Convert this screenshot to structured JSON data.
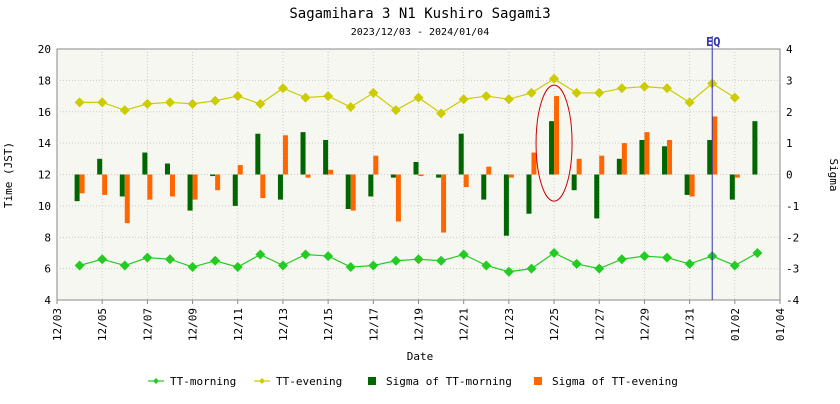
{
  "chart_data": {
    "type": "bar+line",
    "title": "Sagamihara 3 N1 Kushiro Sagami3",
    "subtitle": "2023/12/03 - 2024/01/04",
    "xlabel": "Date",
    "ylabel_left": "Time (JST)",
    "ylabel_right": "Sigma",
    "ylim_left": [
      4,
      20
    ],
    "ylim_right": [
      -4,
      4
    ],
    "yticks_left": [
      "4",
      "6",
      "8",
      "10",
      "12",
      "14",
      "16",
      "18",
      "20"
    ],
    "yticks_right": [
      "-4",
      "-3",
      "-2",
      "-1",
      "0",
      "1",
      "2",
      "3",
      "4"
    ],
    "xticks": [
      "12/03",
      "12/05",
      "12/07",
      "12/09",
      "12/11",
      "12/13",
      "12/15",
      "12/17",
      "12/19",
      "12/21",
      "12/23",
      "12/25",
      "12/27",
      "12/29",
      "12/31",
      "01/02",
      "01/04"
    ],
    "x_dates": [
      "12/04",
      "12/05",
      "12/06",
      "12/07",
      "12/08",
      "12/09",
      "12/10",
      "12/11",
      "12/12",
      "12/13",
      "12/14",
      "12/15",
      "12/16",
      "12/17",
      "12/18",
      "12/19",
      "12/20",
      "12/21",
      "12/22",
      "12/23",
      "12/24",
      "12/25",
      "12/26",
      "12/27",
      "12/28",
      "12/29",
      "12/30",
      "12/31",
      "01/01",
      "01/02",
      "01/03"
    ],
    "grid": true,
    "legend_position": "bottom",
    "series": [
      {
        "name": "TT-morning",
        "kind": "line",
        "axis": "left",
        "color": "#22cc22",
        "values": [
          6.2,
          6.6,
          6.2,
          6.7,
          6.6,
          6.1,
          6.5,
          6.1,
          6.9,
          6.2,
          6.9,
          6.8,
          6.1,
          6.2,
          6.5,
          6.6,
          6.5,
          6.9,
          6.2,
          5.8,
          6.0,
          7.0,
          6.3,
          6.0,
          6.6,
          6.8,
          6.7,
          6.3,
          6.8,
          6.2,
          7.0
        ]
      },
      {
        "name": "TT-evening",
        "kind": "line",
        "axis": "left",
        "color": "#cccc00",
        "values": [
          16.6,
          16.6,
          16.1,
          16.5,
          16.6,
          16.5,
          16.7,
          17.0,
          16.5,
          17.5,
          16.9,
          17.0,
          16.3,
          17.2,
          16.1,
          16.9,
          15.9,
          16.8,
          17.0,
          16.8,
          17.2,
          18.1,
          17.2,
          17.2,
          17.5,
          17.6,
          17.5,
          16.6,
          17.8,
          16.9,
          null
        ]
      },
      {
        "name": "Sigma of TT-morning",
        "kind": "bar",
        "axis": "right",
        "color": "#006600",
        "values": [
          -0.85,
          0.5,
          -0.7,
          0.7,
          0.35,
          -1.15,
          -0.05,
          -1.0,
          1.3,
          -0.8,
          1.35,
          1.1,
          -1.1,
          -0.7,
          -0.1,
          0.4,
          -0.1,
          1.3,
          -0.8,
          -1.95,
          -1.25,
          1.7,
          -0.5,
          -1.4,
          0.5,
          1.1,
          0.9,
          -0.65,
          1.1,
          -0.8,
          1.7
        ]
      },
      {
        "name": "Sigma of TT-evening",
        "kind": "bar",
        "axis": "right",
        "color": "#ff6600",
        "values": [
          -0.6,
          -0.65,
          -1.55,
          -0.8,
          -0.7,
          -0.8,
          -0.5,
          0.3,
          -0.75,
          1.25,
          -0.1,
          0.15,
          -1.15,
          0.6,
          -1.5,
          -0.05,
          -1.85,
          -0.4,
          0.25,
          -0.1,
          0.7,
          2.5,
          0.5,
          0.6,
          1.0,
          1.35,
          1.1,
          -0.7,
          1.85,
          -0.1,
          null
        ]
      }
    ],
    "annotations": [
      {
        "label": "EQ",
        "kind": "vertical-line",
        "x": "01/01",
        "color": "#3333aa"
      },
      {
        "kind": "ellipse-highlight",
        "x": "12/25",
        "color": "#cc0000"
      }
    ]
  }
}
